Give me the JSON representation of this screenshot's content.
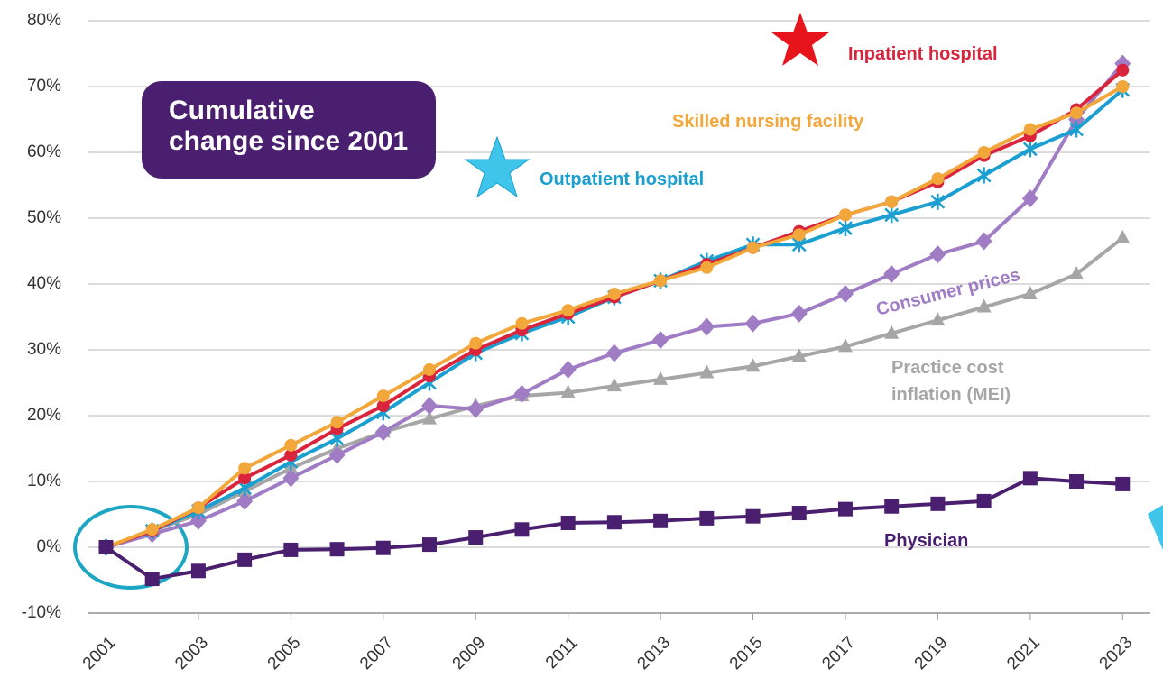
{
  "chart_data": {
    "type": "line",
    "title": "Cumulative change since 2001",
    "x": [
      2001,
      2002,
      2003,
      2004,
      2005,
      2006,
      2007,
      2008,
      2009,
      2010,
      2011,
      2012,
      2013,
      2014,
      2015,
      2016,
      2017,
      2018,
      2019,
      2020,
      2021,
      2022,
      2023
    ],
    "xlim": [
      2000.6,
      2023.6
    ],
    "xticks": [
      2001,
      2003,
      2005,
      2007,
      2009,
      2011,
      2013,
      2015,
      2017,
      2019,
      2021,
      2023
    ],
    "ylim": [
      -10,
      80
    ],
    "yticks": [
      {
        "value": -10,
        "label": "-10%"
      },
      {
        "value": 0,
        "label": "0%"
      },
      {
        "value": 10,
        "label": "10%"
      },
      {
        "value": 20,
        "label": "20%"
      },
      {
        "value": 30,
        "label": "30%"
      },
      {
        "value": 40,
        "label": "40%"
      },
      {
        "value": 50,
        "label": "50%"
      },
      {
        "value": 60,
        "label": "60%"
      },
      {
        "value": 70,
        "label": "70%"
      },
      {
        "value": 80,
        "label": "80%"
      }
    ],
    "grid": true,
    "series": [
      {
        "name": "Practice cost inflation (MEI)",
        "color": "#a6a6a6",
        "marker": "triangle",
        "values": [
          0,
          2.5,
          5,
          8.5,
          12,
          15,
          17.5,
          19.5,
          21.5,
          23,
          23.5,
          24.5,
          25.5,
          26.5,
          27.5,
          29,
          30.5,
          32.5,
          34.5,
          36.5,
          38.5,
          41.5,
          47
        ]
      },
      {
        "name": "Consumer prices",
        "color": "#a07cc5",
        "marker": "diamond",
        "values": [
          0,
          2,
          4,
          7,
          10.5,
          14,
          17.5,
          21.5,
          21,
          23.3,
          27,
          29.5,
          31.5,
          33.5,
          34,
          35.5,
          38.5,
          41.5,
          44.5,
          46.5,
          53,
          65,
          73.5
        ]
      },
      {
        "name": "Outpatient hospital",
        "color": "#1a9fd0",
        "marker": "asterisk",
        "values": [
          0,
          2.5,
          5.5,
          9,
          13,
          16.5,
          20.5,
          25,
          29.5,
          32.5,
          35,
          38,
          40.5,
          43.5,
          46,
          46,
          48.5,
          50.5,
          52.5,
          56.5,
          60.5,
          63.5,
          69.5
        ]
      },
      {
        "name": "Inpatient hospital",
        "color": "#d9243c",
        "marker": "circle",
        "values": [
          0,
          2.5,
          6,
          10.5,
          14,
          18,
          21.5,
          26,
          30,
          33,
          35.5,
          38,
          40.5,
          43,
          45.5,
          48,
          50.5,
          52.5,
          55.5,
          59.5,
          62.5,
          66.5,
          72.5
        ]
      },
      {
        "name": "Skilled nursing facility",
        "color": "#f2a73b",
        "marker": "circle",
        "values": [
          0,
          2.7,
          6,
          12,
          15.5,
          19,
          23,
          27,
          31,
          34,
          36,
          38.5,
          40.5,
          42.5,
          45.5,
          47.5,
          50.5,
          52.5,
          56,
          60,
          63.5,
          66,
          70
        ]
      },
      {
        "name": "Physician",
        "color": "#4b1f6f",
        "marker": "square",
        "values": [
          0,
          -4.8,
          -3.6,
          -1.9,
          -0.4,
          -0.3,
          -0.1,
          0.4,
          1.5,
          2.7,
          3.7,
          3.8,
          4,
          4.4,
          4.7,
          5.2,
          5.8,
          6.2,
          6.6,
          7,
          10.5,
          10,
          9.6
        ]
      }
    ]
  }
}
